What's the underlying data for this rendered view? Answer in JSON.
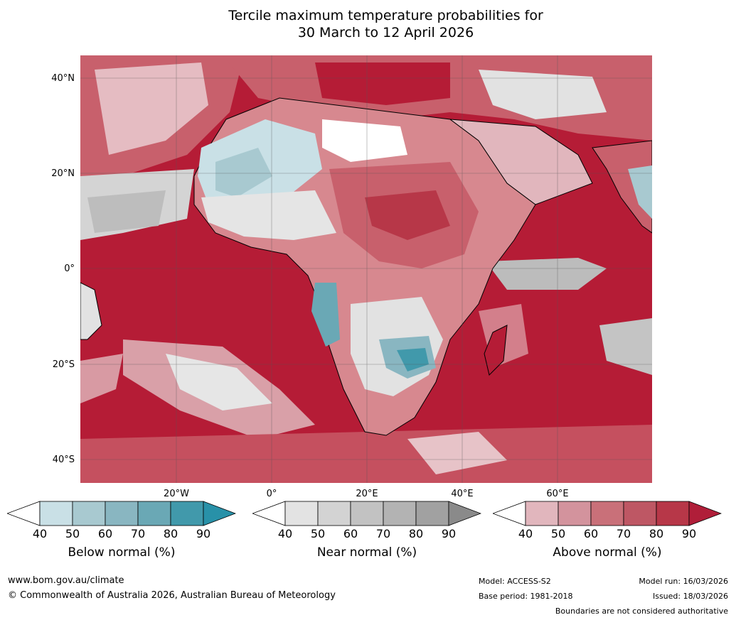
{
  "title_line1": "Tercile maximum temperature probabilities for",
  "title_line2": "30 March to 12 April 2026",
  "lat_labels": [
    "40°N",
    "20°N",
    "0°",
    "20°S",
    "40°S"
  ],
  "lon_labels": [
    "20°W",
    "0°",
    "20°E",
    "40°E",
    "60°E"
  ],
  "legends": [
    {
      "label": "Below normal (%)",
      "ticks": [
        "40",
        "50",
        "60",
        "70",
        "80",
        "90"
      ],
      "colors": [
        "#ffffff",
        "#c9e0e6",
        "#a8c9d0",
        "#89b6c1",
        "#6aa8b5",
        "#4199ab",
        "#2891a8"
      ]
    },
    {
      "label": "Near normal (%)",
      "ticks": [
        "40",
        "50",
        "60",
        "70",
        "80",
        "90"
      ],
      "colors": [
        "#ffffff",
        "#e3e3e3",
        "#d3d3d3",
        "#c2c2c2",
        "#b3b3b3",
        "#a1a1a1",
        "#8a8a8a"
      ]
    },
    {
      "label": "Above normal (%)",
      "ticks": [
        "40",
        "50",
        "60",
        "70",
        "80",
        "90"
      ],
      "colors": [
        "#ffffff",
        "#e1b6bd",
        "#d3939d",
        "#c97079",
        "#be5764",
        "#b73748",
        "#b01e39"
      ]
    }
  ],
  "footer": {
    "url": "www.bom.gov.au/climate",
    "copyright": "© Commonwealth of Australia 2026, Australian Bureau of Meteorology",
    "model": "Model: ACCESS-S2",
    "base_period": "Base period: 1981-2018",
    "model_run": "Model run: 16/03/2026",
    "issued": "Issued: 18/03/2026",
    "disclaimer": "Boundaries are not considered authoritative"
  },
  "palette": {
    "ocean_above": "#b51c36",
    "above_mid": "#c8606c",
    "above_light": "#d99aa3",
    "above_pale": "#e5bcc2",
    "below_light": "#c9e0e6",
    "below_mid": "#6aa8b5",
    "near_light": "#e2e2e2",
    "near_mid": "#bcbcbc",
    "near_dark": "#a3a3a3"
  }
}
